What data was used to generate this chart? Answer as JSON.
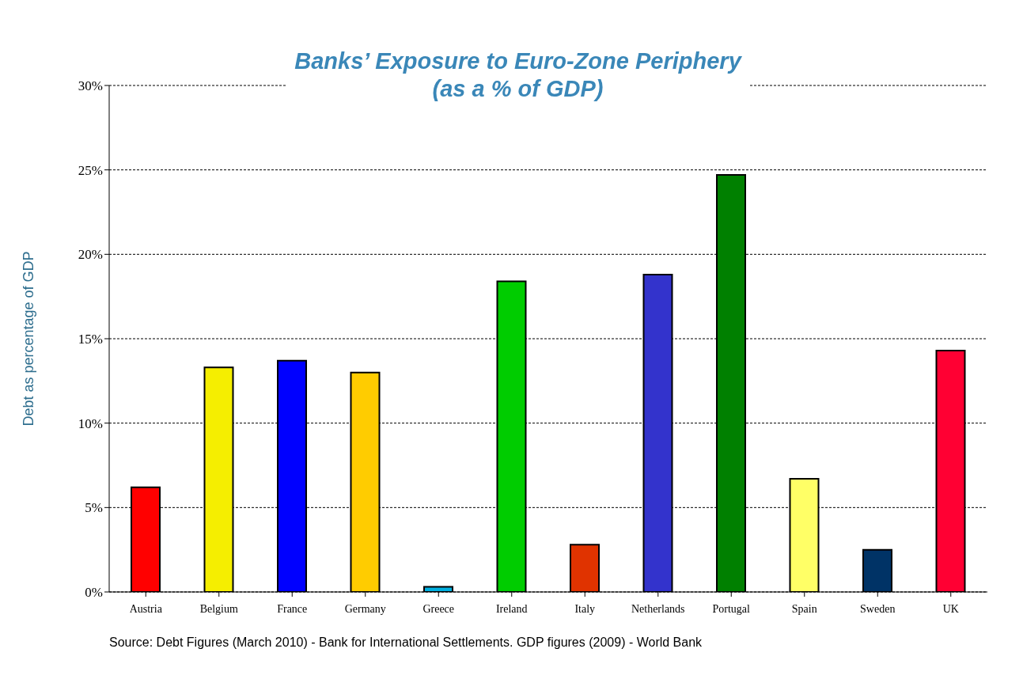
{
  "chart_data": {
    "type": "bar",
    "title": "Banks’ Exposure to Euro-Zone Periphery",
    "subtitle": "(as a % of GDP)",
    "ylabel": "Debt as percentage of GDP",
    "categories": [
      "Austria",
      "Belgium",
      "France",
      "Germany",
      "Greece",
      "Ireland",
      "Italy",
      "Netherlands",
      "Portugal",
      "Spain",
      "Sweden",
      "UK"
    ],
    "values": [
      6.2,
      13.3,
      13.7,
      13.0,
      0.3,
      18.4,
      2.8,
      18.8,
      24.7,
      6.7,
      2.5,
      14.3
    ],
    "colors": [
      "#ff0000",
      "#f5ee00",
      "#0000ff",
      "#ffcc00",
      "#00b0e0",
      "#00cc00",
      "#e03300",
      "#3333cc",
      "#008000",
      "#ffff66",
      "#003366",
      "#ff0033"
    ],
    "ylim": [
      0,
      30
    ],
    "yticks": [
      {
        "value": 0,
        "label": "0%"
      },
      {
        "value": 5,
        "label": "5%"
      },
      {
        "value": 10,
        "label": "10%"
      },
      {
        "value": 15,
        "label": "15%"
      },
      {
        "value": 20,
        "label": "20%"
      },
      {
        "value": 25,
        "label": "25%"
      },
      {
        "value": 30,
        "label": "30%"
      }
    ],
    "grid": "y",
    "annotations": [
      "Source: Debt Figures (March 2010) - Bank for International Settlements.  GDP figures (2009) - World Bank"
    ]
  }
}
